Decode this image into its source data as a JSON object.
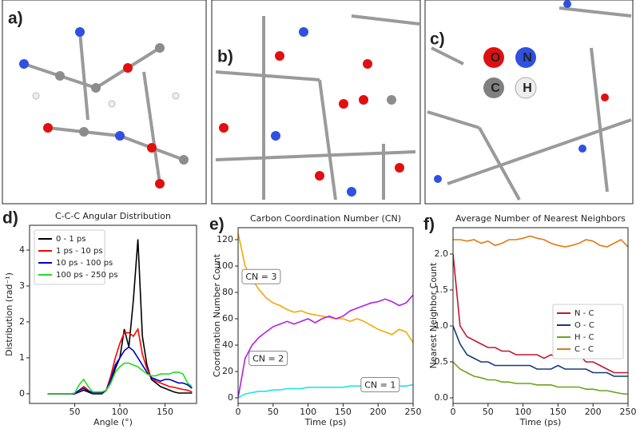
{
  "panels": [
    {
      "label": "a)"
    },
    {
      "label": "b)"
    },
    {
      "label": "c)"
    }
  ],
  "atom_legend": [
    "O",
    "N",
    "C",
    "H"
  ],
  "chart_data": [
    {
      "type": "line",
      "label": "d)",
      "title": "C-C-C Angular Distribution",
      "x_label": "Angle (°)",
      "y_label": "Distribution (rad⁻¹)",
      "x": [
        20,
        25,
        30,
        35,
        40,
        45,
        50,
        55,
        60,
        65,
        70,
        75,
        80,
        85,
        90,
        95,
        100,
        105,
        110,
        115,
        120,
        125,
        130,
        135,
        140,
        145,
        150,
        155,
        160,
        165,
        170,
        175,
        180
      ],
      "series": [
        {
          "name": "0 - 1 ps",
          "color": "#000000",
          "values": [
            0,
            0,
            0,
            0,
            0,
            0,
            0,
            0.05,
            0.1,
            0.05,
            0,
            0,
            0,
            0.1,
            0.3,
            0.7,
            1.0,
            1.8,
            1.3,
            2.6,
            4.3,
            1.6,
            0.8,
            0.4,
            0.3,
            0.2,
            0.15,
            0.1,
            0.05,
            0.02,
            0.02,
            0.02,
            0.02
          ]
        },
        {
          "name": "1 ps - 10 ps",
          "color": "#ff0000",
          "values": [
            0,
            0,
            0,
            0,
            0,
            0,
            0,
            0.1,
            0.2,
            0.1,
            0.02,
            0.02,
            0.02,
            0.1,
            0.5,
            1.0,
            1.4,
            1.7,
            1.7,
            1.6,
            1.8,
            1.1,
            0.7,
            0.45,
            0.35,
            0.3,
            0.25,
            0.2,
            0.18,
            0.15,
            0.12,
            0.1,
            0.05
          ]
        },
        {
          "name": "10 ps - 100 ps",
          "color": "#0000cc",
          "values": [
            0,
            0,
            0,
            0,
            0,
            0,
            0,
            0.1,
            0.15,
            0.08,
            0.03,
            0.03,
            0.03,
            0.1,
            0.4,
            0.8,
            1.0,
            1.2,
            1.3,
            1.2,
            1.0,
            0.8,
            0.6,
            0.45,
            0.4,
            0.35,
            0.4,
            0.4,
            0.35,
            0.3,
            0.3,
            0.25,
            0.15
          ]
        },
        {
          "name": "100 ps - 250 ps",
          "color": "#22dd22",
          "values": [
            0,
            0,
            0,
            0,
            0,
            0,
            0.02,
            0.25,
            0.4,
            0.2,
            0.05,
            0.05,
            0.05,
            0.1,
            0.3,
            0.6,
            0.75,
            0.85,
            0.85,
            0.8,
            0.75,
            0.65,
            0.55,
            0.5,
            0.5,
            0.55,
            0.55,
            0.55,
            0.6,
            0.6,
            0.55,
            0.3,
            0.2
          ]
        }
      ],
      "xlim": [
        0,
        185
      ],
      "xticks": [
        50,
        100,
        150
      ],
      "ylim": [
        -0.27,
        4.69
      ],
      "yticks": [
        0,
        1,
        2,
        3,
        4
      ],
      "legend": "upper left"
    },
    {
      "type": "line",
      "label": "e)",
      "title": "Carbon Coordination Number (CN)",
      "x_label": "Time (ps)",
      "y_label": "Coordination Number Count",
      "x": [
        0,
        10,
        20,
        30,
        40,
        50,
        60,
        70,
        80,
        90,
        100,
        110,
        120,
        130,
        140,
        150,
        160,
        170,
        180,
        190,
        200,
        210,
        220,
        230,
        240,
        250
      ],
      "series": [
        {
          "color": "#f5a800",
          "values": [
            125,
            100,
            90,
            82,
            76,
            72,
            70,
            67,
            65,
            66,
            64,
            63,
            62,
            61,
            60,
            60,
            58,
            60,
            58,
            55,
            52,
            50,
            48,
            52,
            50,
            42
          ]
        },
        {
          "color": "#b21ee6",
          "values": [
            0,
            30,
            40,
            46,
            50,
            54,
            56,
            58,
            56,
            58,
            60,
            57,
            60,
            62,
            60,
            62,
            66,
            68,
            70,
            72,
            73,
            75,
            73,
            70,
            72,
            78
          ]
        },
        {
          "color": "#19e6e6",
          "values": [
            0,
            3,
            4,
            5,
            5,
            6,
            6,
            7,
            7,
            7,
            8,
            8,
            8,
            8,
            8,
            8,
            9,
            9,
            9,
            9,
            9,
            9,
            9,
            9,
            9,
            10
          ]
        }
      ],
      "annotations": [
        {
          "text": "CN = 3",
          "x": 33,
          "y": 92,
          "color": "#f5a800"
        },
        {
          "text": "CN = 2",
          "x": 43,
          "y": 30,
          "color": "#b21ee6"
        },
        {
          "text": "CN = 1",
          "x": 203,
          "y": 10,
          "color": "#19e6e6"
        }
      ],
      "xlim": [
        0,
        250
      ],
      "xticks": [
        0,
        50,
        100,
        150,
        200,
        250
      ],
      "ylim": [
        -4.24,
        129.1
      ],
      "yticks": [
        0,
        20,
        40,
        60,
        80,
        100,
        120
      ]
    },
    {
      "type": "line",
      "label": "f)",
      "title": "Average Number of Nearest Neighbors",
      "x_label": "Time (ps)",
      "y_label": "Nearest Neighbor Count",
      "x": [
        0,
        10,
        20,
        30,
        40,
        50,
        60,
        70,
        80,
        90,
        100,
        110,
        120,
        130,
        140,
        150,
        160,
        170,
        180,
        190,
        200,
        210,
        220,
        230,
        240,
        250
      ],
      "series": [
        {
          "name": "N - C",
          "color": "#c0182e",
          "values": [
            2.0,
            1.0,
            0.85,
            0.8,
            0.75,
            0.7,
            0.7,
            0.65,
            0.65,
            0.6,
            0.6,
            0.6,
            0.6,
            0.55,
            0.6,
            0.55,
            0.55,
            0.55,
            0.6,
            0.5,
            0.5,
            0.45,
            0.4,
            0.35,
            0.35,
            0.35
          ]
        },
        {
          "name": "O - C",
          "color": "#123a7a",
          "values": [
            1.0,
            0.75,
            0.6,
            0.55,
            0.5,
            0.5,
            0.45,
            0.45,
            0.45,
            0.45,
            0.45,
            0.45,
            0.4,
            0.4,
            0.4,
            0.45,
            0.4,
            0.4,
            0.4,
            0.4,
            0.35,
            0.35,
            0.35,
            0.3,
            0.3,
            0.3
          ]
        },
        {
          "name": "H - C",
          "color": "#6fa21a",
          "values": [
            0.5,
            0.4,
            0.35,
            0.3,
            0.28,
            0.25,
            0.25,
            0.22,
            0.22,
            0.2,
            0.2,
            0.2,
            0.18,
            0.18,
            0.18,
            0.15,
            0.15,
            0.15,
            0.15,
            0.12,
            0.12,
            0.1,
            0.1,
            0.08,
            0.06,
            0.05
          ]
        },
        {
          "name": "C - C",
          "color": "#e47a14",
          "values": [
            2.2,
            2.2,
            2.18,
            2.2,
            2.15,
            2.18,
            2.12,
            2.15,
            2.2,
            2.2,
            2.22,
            2.25,
            2.22,
            2.2,
            2.15,
            2.12,
            2.1,
            2.12,
            2.15,
            2.2,
            2.18,
            2.12,
            2.1,
            2.15,
            2.2,
            2.1
          ]
        }
      ],
      "xlim": [
        0,
        250
      ],
      "xticks": [
        0,
        50,
        100,
        150,
        200,
        250
      ],
      "ylim": [
        -0.078,
        2.367
      ],
      "yticks": [
        {
          "value": 0,
          "label": "0.0"
        },
        {
          "value": 0.5,
          "label": "0.5"
        },
        {
          "value": 1,
          "label": "1.0"
        },
        {
          "value": 1.5,
          "label": "1.5"
        },
        {
          "value": 2,
          "label": "2.0"
        }
      ],
      "legend": "center right"
    }
  ]
}
